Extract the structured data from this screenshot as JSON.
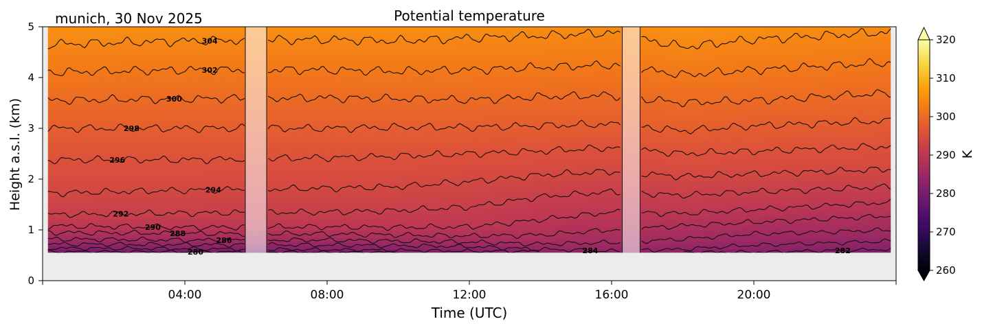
{
  "chart_data": {
    "type": "heatmap",
    "title": "Potential temperature",
    "subtitle": "munich, 30 Nov 2025",
    "xlabel": "Time (UTC)",
    "ylabel": "Height a.s.l. (km)",
    "x_range_hours": [
      0,
      24
    ],
    "x_ticks": [
      {
        "hour": 4,
        "label": "04:00"
      },
      {
        "hour": 8,
        "label": "08:00"
      },
      {
        "hour": 12,
        "label": "12:00"
      },
      {
        "hour": 16,
        "label": "16:00"
      },
      {
        "hour": 20,
        "label": "20:00"
      }
    ],
    "y_range_km": [
      0,
      5
    ],
    "y_ticks": [
      {
        "value": 0,
        "label": "0"
      },
      {
        "value": 1,
        "label": "1"
      },
      {
        "value": 2,
        "label": "2"
      },
      {
        "value": 3,
        "label": "3"
      },
      {
        "value": 4,
        "label": "4"
      },
      {
        "value": 5,
        "label": "5"
      }
    ],
    "data_height_range_km": [
      0.55,
      5
    ],
    "data_gaps_hours": [
      [
        5.7,
        6.3
      ],
      [
        16.3,
        16.8
      ]
    ],
    "colorbar": {
      "label": "K",
      "min": 260,
      "max": 320,
      "ticks": [
        "260",
        "270",
        "280",
        "290",
        "300",
        "310",
        "320"
      ],
      "extend": "both",
      "colormap": "inferno"
    },
    "contours": [
      {
        "value": 280,
        "label": "280",
        "label_hour": 4.3
      },
      {
        "value": 282,
        "label": "282",
        "label_hour": 22.5
      },
      {
        "value": 284,
        "label": "284",
        "label_hour": 15.4
      },
      {
        "value": 286,
        "label": "286",
        "label_hour": 5.1
      },
      {
        "value": 288,
        "label": "288",
        "label_hour": 3.8
      },
      {
        "value": 290,
        "label": "290",
        "label_hour": 3.1
      },
      {
        "value": 292,
        "label": "292",
        "label_hour": 2.2
      },
      {
        "value": 294,
        "label": "294",
        "label_hour": 4.8
      },
      {
        "value": 296,
        "label": "296",
        "label_hour": 2.1
      },
      {
        "value": 298,
        "label": "298",
        "label_hour": 2.5
      },
      {
        "value": 300,
        "label": "300",
        "label_hour": 3.7
      },
      {
        "value": 302,
        "label": "302",
        "label_hour": 4.7
      },
      {
        "value": 304,
        "label": "304",
        "label_hour": 4.7
      }
    ],
    "contour_height_profile_km": {
      "hours": [
        0,
        4,
        8,
        10,
        12,
        14,
        16,
        18,
        20,
        24
      ],
      "levels": {
        "280": [
          0.57,
          0.57,
          0.56,
          null,
          null,
          null,
          null,
          null,
          null,
          null
        ],
        "282": [
          0.64,
          0.63,
          0.61,
          0.6,
          0.58,
          null,
          null,
          null,
          0.56,
          0.62
        ],
        "284": [
          0.72,
          0.71,
          0.7,
          0.69,
          0.67,
          0.62,
          0.58,
          0.62,
          0.7,
          0.78
        ],
        "286": [
          0.82,
          0.8,
          0.8,
          0.78,
          0.76,
          0.72,
          0.75,
          0.82,
          0.92,
          1.0
        ],
        "288": [
          0.95,
          0.93,
          0.92,
          0.9,
          0.88,
          0.9,
          1.0,
          1.08,
          1.15,
          1.28
        ],
        "290": [
          1.08,
          1.05,
          1.06,
          1.05,
          1.06,
          1.2,
          1.35,
          1.32,
          1.4,
          1.55
        ],
        "292": [
          1.3,
          1.33,
          1.35,
          1.38,
          1.45,
          1.65,
          1.75,
          1.68,
          1.75,
          1.85
        ],
        "294": [
          1.72,
          1.78,
          1.82,
          1.85,
          1.95,
          2.08,
          2.15,
          2.05,
          2.1,
          2.2
        ],
        "296": [
          2.38,
          2.38,
          2.42,
          2.45,
          2.5,
          2.55,
          2.62,
          2.5,
          2.55,
          2.65
        ],
        "298": [
          3.0,
          3.0,
          3.0,
          3.02,
          3.02,
          3.05,
          3.08,
          2.95,
          3.05,
          3.15
        ],
        "300": [
          3.55,
          3.58,
          3.6,
          3.58,
          3.56,
          3.62,
          3.65,
          3.5,
          3.55,
          3.7
        ],
        "302": [
          4.1,
          4.15,
          4.15,
          4.12,
          4.15,
          4.2,
          4.25,
          4.05,
          4.15,
          4.3
        ],
        "304": [
          4.65,
          4.72,
          4.75,
          4.72,
          4.78,
          4.82,
          4.88,
          4.6,
          4.75,
          4.9
        ]
      }
    }
  }
}
